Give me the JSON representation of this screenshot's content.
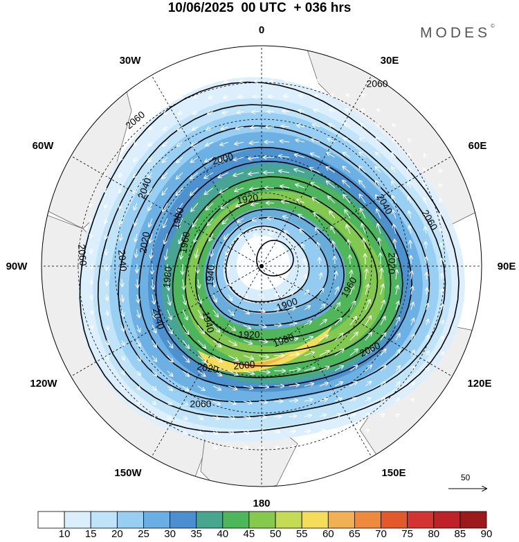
{
  "header": {
    "title": "10/06/2025  00 UTC  + 036 hrs",
    "brand": "MODES",
    "brand_mark": "©"
  },
  "map": {
    "projection": "north-polar-stereographic",
    "meridian_labels": [
      "0",
      "30E",
      "60E",
      "90E",
      "120E",
      "150E",
      "180",
      "150W",
      "120W",
      "90W",
      "60W",
      "30W"
    ],
    "height_contours": [
      {
        "value": "2060",
        "count": 6
      },
      {
        "value": "2040",
        "count": 4
      },
      {
        "value": "2020",
        "count": 3
      },
      {
        "value": "2000",
        "count": 2
      },
      {
        "value": "1980",
        "count": 3
      },
      {
        "value": "1960",
        "count": 2
      },
      {
        "value": "1940",
        "count": 2
      },
      {
        "value": "1920",
        "count": 2
      },
      {
        "value": "1900",
        "count": 1
      }
    ],
    "wind_reference_vector": "50",
    "colors": {
      "land": "#eeeeee",
      "contour": "#000000",
      "vector": "#ffffff"
    }
  },
  "colorbar": {
    "labels": [
      "10",
      "15",
      "20",
      "25",
      "30",
      "35",
      "40",
      "45",
      "50",
      "55",
      "60",
      "65",
      "70",
      "75",
      "80",
      "85",
      "90"
    ],
    "colors": [
      "#ffffff",
      "#dbeefc",
      "#bfe3f9",
      "#97cef2",
      "#6aaee3",
      "#4d8fce",
      "#48a690",
      "#4db55a",
      "#86c94f",
      "#c5da55",
      "#f5dd5c",
      "#f2b054",
      "#ee8a3d",
      "#e4592c",
      "#d43431",
      "#bf2128",
      "#9c1a1c"
    ]
  }
}
